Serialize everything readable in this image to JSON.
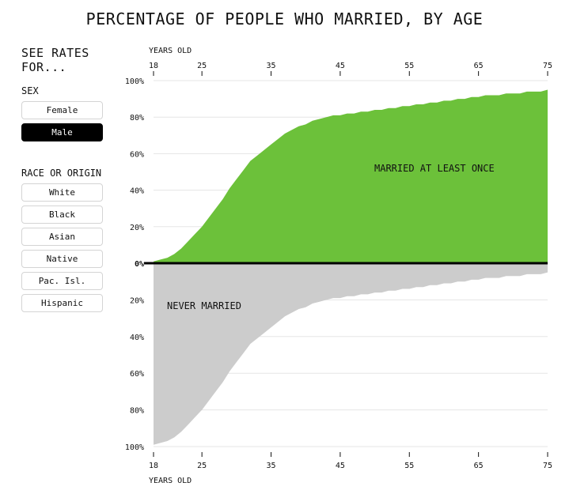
{
  "title": "PERCENTAGE OF PEOPLE WHO MARRIED, BY AGE",
  "sidebar": {
    "heading": "SEE RATES FOR...",
    "sex_label": "SEX",
    "sex_options": [
      "Female",
      "Male"
    ],
    "sex_selected": "Male",
    "race_label": "RACE OR ORIGIN",
    "race_options": [
      "White",
      "Black",
      "Asian",
      "Native",
      "Pac. Isl.",
      "Hispanic"
    ]
  },
  "colors": {
    "married": "#6cc13a",
    "never": "#cccccc",
    "baseline": "#000000",
    "grid": "#e5e5e5"
  },
  "chart_data": {
    "type": "area",
    "title": "PERCENTAGE OF PEOPLE WHO MARRIED, BY AGE",
    "xlabel": "YEARS OLD",
    "x_ticks": [
      18,
      25,
      35,
      45,
      55,
      65,
      75
    ],
    "xlim": [
      18,
      75
    ],
    "y_ticks_top": [
      "100%",
      "80%",
      "60%",
      "40%",
      "20%",
      "0%"
    ],
    "y_ticks_bottom": [
      "20%",
      "40%",
      "60%",
      "80%",
      "100%"
    ],
    "y_tick_values": [
      0,
      20,
      40,
      60,
      80,
      100
    ],
    "ylim": [
      0,
      100
    ],
    "grid": true,
    "series": [
      {
        "name": "MARRIED AT LEAST ONCE",
        "x": [
          18,
          19,
          20,
          21,
          22,
          23,
          24,
          25,
          26,
          27,
          28,
          29,
          30,
          31,
          32,
          33,
          34,
          35,
          36,
          37,
          38,
          39,
          40,
          41,
          42,
          43,
          44,
          45,
          46,
          47,
          48,
          49,
          50,
          51,
          52,
          53,
          54,
          55,
          56,
          57,
          58,
          59,
          60,
          61,
          62,
          63,
          64,
          65,
          66,
          67,
          68,
          69,
          70,
          71,
          72,
          73,
          74,
          75
        ],
        "values": [
          1,
          2,
          3,
          5,
          8,
          12,
          16,
          20,
          25,
          30,
          35,
          41,
          46,
          51,
          56,
          59,
          62,
          65,
          68,
          71,
          73,
          75,
          76,
          78,
          79,
          80,
          81,
          81,
          82,
          82,
          83,
          83,
          84,
          84,
          85,
          85,
          86,
          86,
          87,
          87,
          88,
          88,
          89,
          89,
          90,
          90,
          91,
          91,
          92,
          92,
          92,
          93,
          93,
          93,
          94,
          94,
          94,
          95
        ]
      },
      {
        "name": "NEVER MARRIED",
        "x": [
          18,
          19,
          20,
          21,
          22,
          23,
          24,
          25,
          26,
          27,
          28,
          29,
          30,
          31,
          32,
          33,
          34,
          35,
          36,
          37,
          38,
          39,
          40,
          41,
          42,
          43,
          44,
          45,
          46,
          47,
          48,
          49,
          50,
          51,
          52,
          53,
          54,
          55,
          56,
          57,
          58,
          59,
          60,
          61,
          62,
          63,
          64,
          65,
          66,
          67,
          68,
          69,
          70,
          71,
          72,
          73,
          74,
          75
        ],
        "values": [
          99,
          98,
          97,
          95,
          92,
          88,
          84,
          80,
          75,
          70,
          65,
          59,
          54,
          49,
          44,
          41,
          38,
          35,
          32,
          29,
          27,
          25,
          24,
          22,
          21,
          20,
          19,
          19,
          18,
          18,
          17,
          17,
          16,
          16,
          15,
          15,
          14,
          14,
          13,
          13,
          12,
          12,
          11,
          11,
          10,
          10,
          9,
          9,
          8,
          8,
          8,
          7,
          7,
          7,
          6,
          6,
          6,
          5
        ]
      }
    ]
  }
}
